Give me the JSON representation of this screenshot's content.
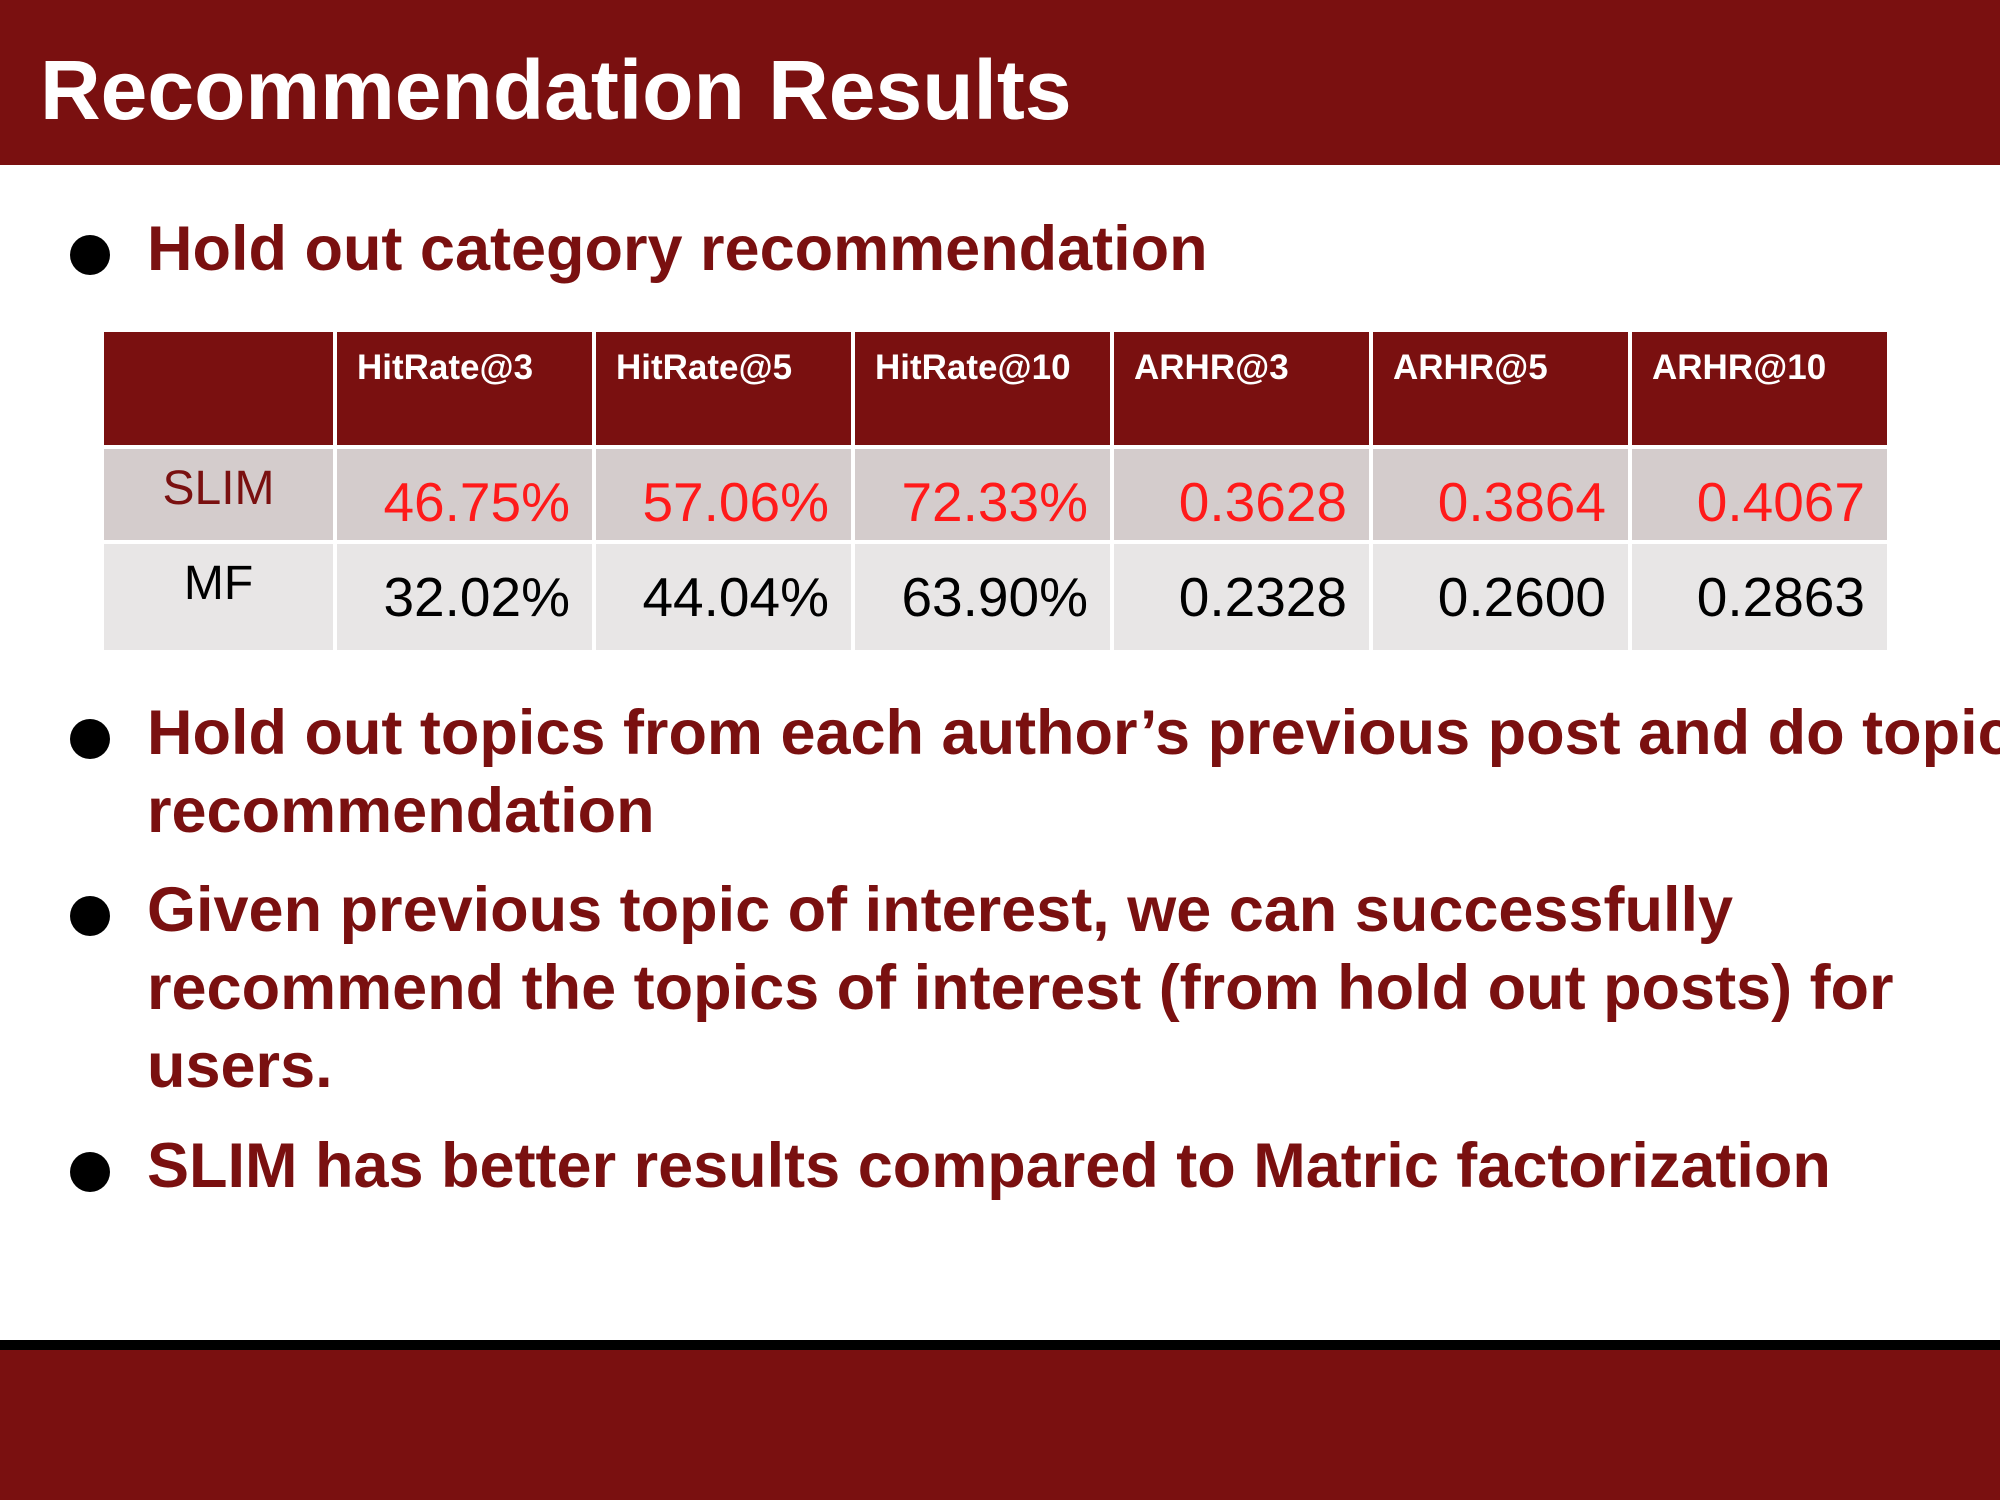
{
  "slide": {
    "title": "Recommendation Results"
  },
  "bullets": [
    "Hold out category recommendation",
    "Hold out topics from each author’s previous post and do topic recommendation",
    "Given previous topic of interest, we can successfully recommend the topics of interest (from hold out posts) for users.",
    "SLIM has better results compared to Matric factorization"
  ],
  "table": {
    "corner": "",
    "headers": [
      "HitRate@3",
      "HitRate@5",
      "HitRate@10",
      "ARHR@3",
      "ARHR@5",
      "ARHR@10"
    ],
    "rows": [
      {
        "label": "SLIM",
        "values": [
          "46.75%",
          "57.06%",
          "72.33%",
          "0.3628",
          "0.3864",
          "0.4067"
        ]
      },
      {
        "label": "MF",
        "values": [
          "32.02%",
          "44.04%",
          "63.90%",
          "0.2328",
          "0.2600",
          "0.2863"
        ]
      }
    ]
  },
  "colors": {
    "brand": "#7a1010",
    "highlight": "#ff1a1a",
    "slim_row_bg": "#d4cccc",
    "mf_row_bg": "#e8e6e6"
  }
}
